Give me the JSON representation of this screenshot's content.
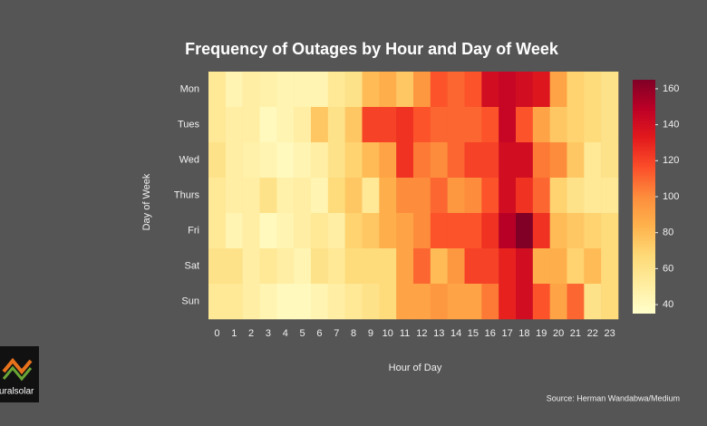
{
  "chart_data": {
    "type": "heatmap",
    "title": "Frequency of Outages by Hour and Day of Week",
    "x_label": "Hour of Day",
    "y_label": "Day of Week",
    "x": [
      0,
      1,
      2,
      3,
      4,
      5,
      6,
      7,
      8,
      9,
      10,
      11,
      12,
      13,
      14,
      15,
      16,
      17,
      18,
      19,
      20,
      21,
      22,
      23
    ],
    "y": [
      "Mon",
      "Tues",
      "Wed",
      "Thurs",
      "Fri",
      "Sat",
      "Sun"
    ],
    "values": [
      [
        55,
        45,
        50,
        48,
        45,
        45,
        45,
        55,
        60,
        80,
        85,
        75,
        95,
        115,
        110,
        115,
        140,
        145,
        140,
        135,
        90,
        70,
        65,
        60
      ],
      [
        55,
        50,
        50,
        40,
        45,
        50,
        75,
        60,
        75,
        120,
        120,
        125,
        115,
        110,
        110,
        110,
        115,
        145,
        115,
        90,
        75,
        70,
        65,
        60
      ],
      [
        60,
        50,
        48,
        45,
        40,
        45,
        50,
        60,
        70,
        80,
        90,
        125,
        105,
        100,
        110,
        120,
        120,
        140,
        140,
        105,
        100,
        75,
        55,
        60
      ],
      [
        55,
        50,
        50,
        60,
        48,
        50,
        45,
        65,
        75,
        55,
        85,
        100,
        100,
        110,
        95,
        100,
        115,
        140,
        125,
        110,
        70,
        60,
        55,
        55
      ],
      [
        55,
        45,
        50,
        40,
        45,
        50,
        55,
        50,
        70,
        75,
        85,
        90,
        100,
        115,
        115,
        115,
        125,
        150,
        165,
        125,
        80,
        75,
        70,
        65
      ],
      [
        60,
        60,
        50,
        55,
        50,
        45,
        60,
        55,
        65,
        65,
        65,
        90,
        110,
        80,
        95,
        120,
        120,
        130,
        140,
        85,
        85,
        70,
        80,
        65
      ],
      [
        55,
        55,
        50,
        45,
        40,
        40,
        45,
        50,
        55,
        60,
        65,
        90,
        90,
        95,
        90,
        90,
        105,
        130,
        140,
        115,
        90,
        110,
        60,
        65
      ]
    ],
    "clim": [
      35,
      165
    ],
    "colorbar_ticks": [
      40,
      60,
      80,
      100,
      120,
      140,
      160
    ],
    "colormap": [
      "#ffffcc",
      "#ffeda0",
      "#fed976",
      "#feb24c",
      "#fd8d3c",
      "#fc4e2a",
      "#e31a1c",
      "#bd0026",
      "#800026"
    ]
  },
  "source": "Source: Herman Wandabwa/Medium",
  "logo": "uralsolar"
}
